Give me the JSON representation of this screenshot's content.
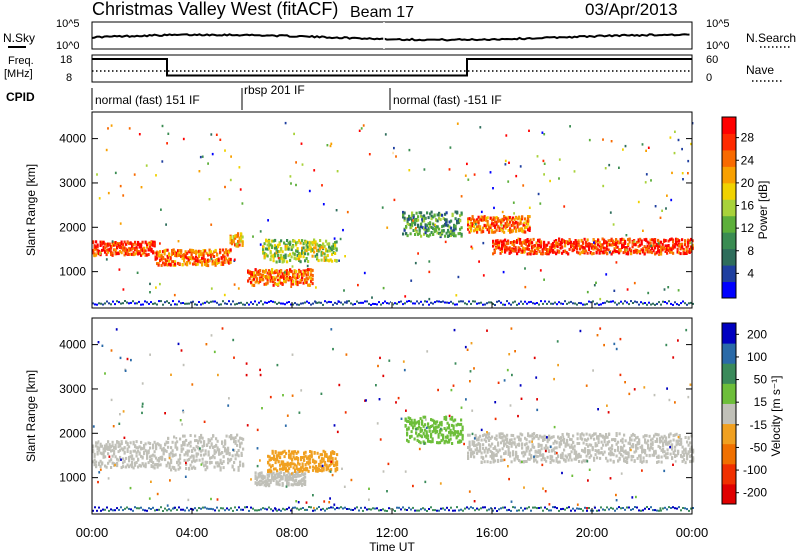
{
  "header": {
    "station": "Christmas Valley West (fitACF)",
    "beam": "Beam 17",
    "date": "03/Apr/2013"
  },
  "chart_data": [
    {
      "type": "line",
      "panel": "noise",
      "left_label": "N.Sky",
      "right_label": "N.Search",
      "left_ticks": [
        "10^5",
        "10^0"
      ],
      "right_ticks": [
        "10^5",
        "10^0"
      ],
      "x_range_hours": [
        0,
        24
      ]
    },
    {
      "type": "line",
      "panel": "frequency",
      "left_label_line1": "Freq.",
      "left_label_line2": "[MHz]",
      "right_label": "Nave",
      "left_ticks": [
        "18",
        "8"
      ],
      "right_ticks": [
        "60",
        "0"
      ],
      "x_range_hours": [
        0,
        24
      ],
      "freq_steps": [
        {
          "from": 0.0,
          "to": 3.0,
          "mhz": 16.5
        },
        {
          "from": 3.0,
          "to": 12.0,
          "mhz": 10.4
        },
        {
          "from": 12.0,
          "to": 15.0,
          "mhz": 10.4
        },
        {
          "from": 15.0,
          "to": 24.0,
          "mhz": 16.5
        }
      ]
    },
    {
      "type": "table",
      "panel": "cpid",
      "label": "CPID",
      "modes": [
        {
          "start_hour": 0.0,
          "text": "normal (fast) 151 IF"
        },
        {
          "start_hour": 6.0,
          "text": "rbsp 201 IF"
        },
        {
          "start_hour": 12.0,
          "text": "normal (fast) -151 IF"
        }
      ]
    },
    {
      "type": "heatmap",
      "panel": "power",
      "ylabel": "Slant Range [km]",
      "ylim": [
        180,
        4600
      ],
      "yticks": [
        1000,
        2000,
        3000,
        4000
      ],
      "colorbar_label": "Power [dB]",
      "colorbar_ticks": [
        4,
        8,
        12,
        16,
        20,
        24,
        28
      ],
      "colors": [
        "#0000ff",
        "#1f3f9f",
        "#2e6d5b",
        "#3a8c52",
        "#5caf3a",
        "#a8d23a",
        "#f0d200",
        "#f8a000",
        "#f86a00",
        "#ff2a00",
        "#ff0000"
      ],
      "scatter_bands": [
        {
          "h0": 0.0,
          "h1": 2.5,
          "center_km": 1550,
          "half_width_km": 160,
          "level": 9
        },
        {
          "h0": 2.5,
          "h1": 5.5,
          "center_km": 1350,
          "half_width_km": 180,
          "level": 8
        },
        {
          "h0": 5.5,
          "h1": 6.0,
          "center_km": 1750,
          "half_width_km": 150,
          "level": 7
        },
        {
          "h0": 6.2,
          "h1": 8.8,
          "center_km": 900,
          "half_width_km": 180,
          "level": 8
        },
        {
          "h0": 6.8,
          "h1": 9.8,
          "center_km": 1500,
          "half_width_km": 250,
          "level": 5
        },
        {
          "h0": 12.4,
          "h1": 14.8,
          "center_km": 2100,
          "half_width_km": 280,
          "level": 3
        },
        {
          "h0": 15.0,
          "h1": 17.5,
          "center_km": 2100,
          "half_width_km": 180,
          "level": 8
        },
        {
          "h0": 16.0,
          "h1": 24.0,
          "center_km": 1600,
          "half_width_km": 170,
          "level": 9
        }
      ]
    },
    {
      "type": "heatmap",
      "panel": "velocity",
      "ylabel": "Slant Range [km]",
      "ylim": [
        180,
        4600
      ],
      "yticks": [
        1000,
        2000,
        3000,
        4000
      ],
      "colorbar_label": "Velocity [m s⁻¹]",
      "colorbar_ticks": [
        200,
        100,
        50,
        15,
        -15,
        -50,
        -100,
        -200
      ],
      "colors": [
        "#0000c0",
        "#2a6aa8",
        "#3a8a5a",
        "#6dbe3a",
        "#c0c0b8",
        "#f0a020",
        "#f07000",
        "#f03000",
        "#e00000"
      ],
      "scatter_bands": [
        {
          "h0": 0.0,
          "h1": 3.0,
          "center_km": 1550,
          "half_width_km": 300,
          "color": "#c0c0b8"
        },
        {
          "h0": 3.0,
          "h1": 6.0,
          "center_km": 1600,
          "half_width_km": 400,
          "color": "#c0c0b8"
        },
        {
          "h0": 6.5,
          "h1": 8.5,
          "center_km": 1000,
          "half_width_km": 150,
          "color": "#c0c0b8"
        },
        {
          "h0": 7.0,
          "h1": 9.8,
          "center_km": 1400,
          "half_width_km": 230,
          "color": "#f0a020"
        },
        {
          "h0": 12.5,
          "h1": 14.8,
          "center_km": 2100,
          "half_width_km": 300,
          "color": "#6dbe3a"
        },
        {
          "h0": 15.0,
          "h1": 24.0,
          "center_km": 1700,
          "half_width_km": 330,
          "color": "#c0c0b8"
        }
      ]
    }
  ],
  "xaxis": {
    "label": "Time UT",
    "ticks": [
      "00:00",
      "04:00",
      "08:00",
      "12:00",
      "16:00",
      "20:00",
      "00:00"
    ]
  }
}
